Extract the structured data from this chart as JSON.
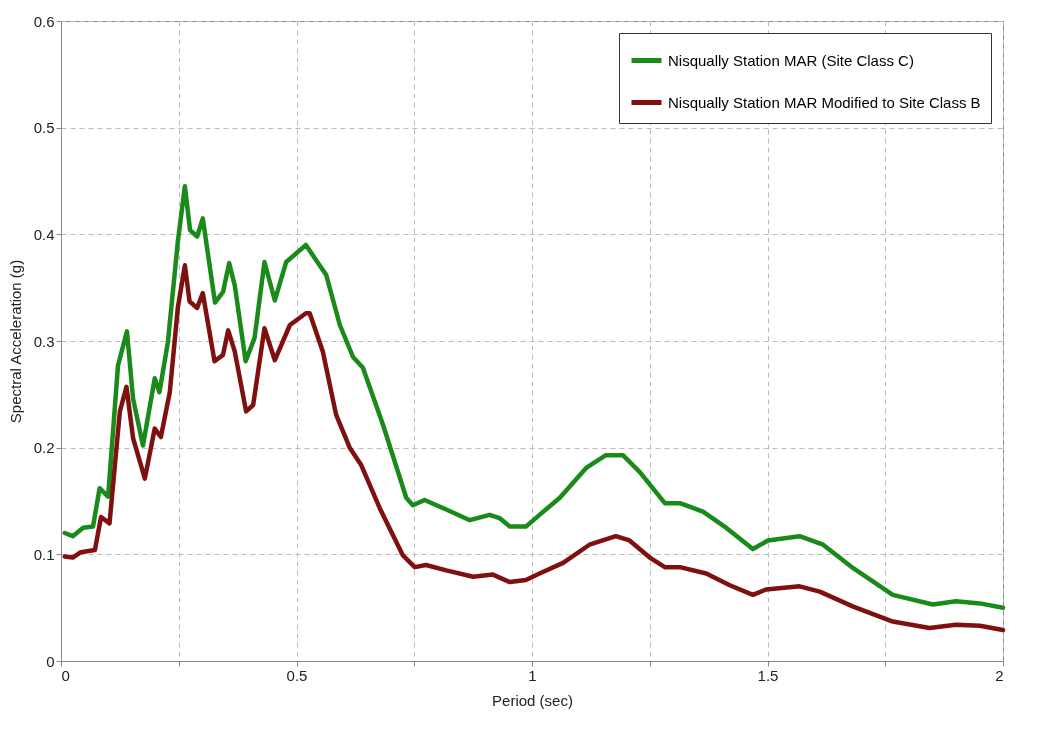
{
  "chart_data": {
    "type": "line",
    "xlabel": "Period (sec)",
    "ylabel": "Spectral Acceleration (g)",
    "xlim": [
      0,
      2
    ],
    "ylim": [
      0,
      0.6
    ],
    "xticks": [
      0,
      {
        "value": 0.25,
        "label": null
      },
      0.5,
      {
        "value": 0.75,
        "label": null
      },
      1,
      {
        "value": 1.25,
        "label": null
      },
      1.5,
      {
        "value": 1.75,
        "label": null
      },
      2
    ],
    "yticks": [
      0,
      0.1,
      0.2,
      0.3,
      0.4,
      0.5,
      0.6
    ],
    "grid": true,
    "legend": "top right",
    "line_style": "solid",
    "series": [
      {
        "name": "Nisqually Station MAR (Site Class C)",
        "color": "#1a8a1a",
        "x": [
          0.008,
          0.025,
          0.047,
          0.068,
          0.082,
          0.1,
          0.121,
          0.14,
          0.153,
          0.174,
          0.199,
          0.209,
          0.227,
          0.248,
          0.263,
          0.274,
          0.289,
          0.301,
          0.327,
          0.344,
          0.357,
          0.369,
          0.392,
          0.411,
          0.432,
          0.454,
          0.478,
          0.52,
          0.549,
          0.563,
          0.592,
          0.62,
          0.641,
          0.684,
          0.733,
          0.747,
          0.772,
          0.818,
          0.868,
          0.91,
          0.931,
          0.953,
          0.987,
          1.016,
          1.059,
          1.115,
          1.157,
          1.193,
          1.229,
          1.282,
          1.314,
          1.363,
          1.412,
          1.469,
          1.501,
          1.568,
          1.618,
          1.682,
          1.766,
          1.851,
          1.9,
          1.951,
          2.0
        ],
        "values": [
          0.12,
          0.117,
          0.125,
          0.126,
          0.162,
          0.154,
          0.277,
          0.309,
          0.246,
          0.202,
          0.265,
          0.252,
          0.299,
          0.393,
          0.445,
          0.404,
          0.398,
          0.415,
          0.336,
          0.346,
          0.373,
          0.352,
          0.281,
          0.303,
          0.374,
          0.338,
          0.374,
          0.39,
          0.371,
          0.362,
          0.315,
          0.285,
          0.275,
          0.221,
          0.153,
          0.146,
          0.151,
          0.142,
          0.132,
          0.137,
          0.134,
          0.126,
          0.126,
          0.137,
          0.153,
          0.181,
          0.193,
          0.193,
          0.177,
          0.148,
          0.148,
          0.14,
          0.125,
          0.105,
          0.113,
          0.117,
          0.109,
          0.087,
          0.062,
          0.053,
          0.056,
          0.054,
          0.05
        ]
      },
      {
        "name": "Nisqually Station MAR Modified to Site Class B",
        "color": "#7f1010",
        "x": [
          0.008,
          0.025,
          0.042,
          0.072,
          0.085,
          0.103,
          0.125,
          0.139,
          0.153,
          0.178,
          0.199,
          0.212,
          0.231,
          0.248,
          0.263,
          0.273,
          0.289,
          0.301,
          0.326,
          0.344,
          0.355,
          0.369,
          0.393,
          0.408,
          0.432,
          0.454,
          0.486,
          0.52,
          0.528,
          0.556,
          0.584,
          0.613,
          0.637,
          0.677,
          0.726,
          0.751,
          0.775,
          0.818,
          0.875,
          0.917,
          0.953,
          0.987,
          1.016,
          1.066,
          1.122,
          1.178,
          1.207,
          1.25,
          1.282,
          1.314,
          1.37,
          1.42,
          1.469,
          1.497,
          1.568,
          1.611,
          1.682,
          1.766,
          1.844,
          1.9,
          1.951,
          2.0
        ],
        "values": [
          0.098,
          0.097,
          0.102,
          0.104,
          0.135,
          0.129,
          0.234,
          0.257,
          0.209,
          0.171,
          0.218,
          0.21,
          0.252,
          0.331,
          0.371,
          0.337,
          0.331,
          0.345,
          0.281,
          0.287,
          0.31,
          0.29,
          0.234,
          0.24,
          0.312,
          0.282,
          0.315,
          0.326,
          0.326,
          0.29,
          0.231,
          0.2,
          0.184,
          0.143,
          0.099,
          0.088,
          0.09,
          0.085,
          0.079,
          0.081,
          0.074,
          0.076,
          0.082,
          0.092,
          0.109,
          0.117,
          0.113,
          0.097,
          0.088,
          0.088,
          0.082,
          0.071,
          0.062,
          0.067,
          0.07,
          0.065,
          0.051,
          0.037,
          0.031,
          0.034,
          0.033,
          0.029
        ]
      }
    ]
  }
}
